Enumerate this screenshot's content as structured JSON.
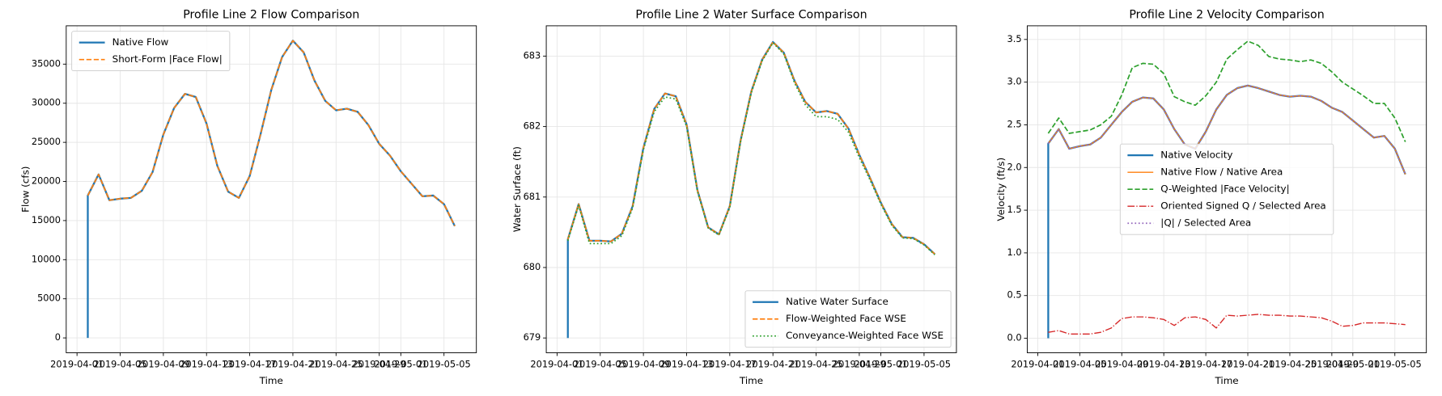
{
  "chart_data": [
    {
      "type": "line",
      "title": "Profile Line 2 Flow Comparison",
      "xlabel": "Time",
      "ylabel": "Flow (cfs)",
      "x": [
        "2019-04-02",
        "2019-04-02",
        "2019-04-03",
        "2019-04-04",
        "2019-04-05",
        "2019-04-06",
        "2019-04-07",
        "2019-04-08",
        "2019-04-09",
        "2019-04-10",
        "2019-04-11",
        "2019-04-12",
        "2019-04-13",
        "2019-04-14",
        "2019-04-15",
        "2019-04-16",
        "2019-04-17",
        "2019-04-18",
        "2019-04-19",
        "2019-04-20",
        "2019-04-21",
        "2019-04-22",
        "2019-04-23",
        "2019-04-24",
        "2019-04-25",
        "2019-04-26",
        "2019-04-27",
        "2019-04-28",
        "2019-04-29",
        "2019-04-30",
        "2019-05-01",
        "2019-05-02",
        "2019-05-03",
        "2019-05-04",
        "2019-05-05",
        "2019-05-06"
      ],
      "series": [
        {
          "name": "Native Flow",
          "color": "#1f77b4",
          "linestyle": "solid",
          "linewidth": 2,
          "values": [
            0,
            18200,
            20900,
            17600,
            17800,
            17900,
            18800,
            21200,
            26000,
            29400,
            31200,
            30800,
            27400,
            22000,
            18700,
            17900,
            20700,
            26000,
            31700,
            35900,
            38000,
            36500,
            32900,
            30300,
            29100,
            29300,
            28900,
            27200,
            24800,
            23300,
            21300,
            19700,
            18100,
            18200,
            17100,
            14300
          ]
        },
        {
          "name": "Short-Form |Face Flow|",
          "color": "#ff7f0e",
          "linestyle": "dashed",
          "linewidth": 1.5,
          "values": [
            null,
            18200,
            20900,
            17600,
            17800,
            17900,
            18800,
            21200,
            26000,
            29400,
            31200,
            30800,
            27400,
            22000,
            18700,
            17900,
            20700,
            26000,
            31700,
            35900,
            38000,
            36500,
            32900,
            30300,
            29100,
            29300,
            28900,
            27200,
            24800,
            23300,
            21300,
            19700,
            18100,
            18200,
            17100,
            14300
          ]
        }
      ],
      "xlim": [
        "2019-03-31",
        "2019-05-08"
      ],
      "xticks": [
        "2019-04-01",
        "2019-04-05",
        "2019-04-09",
        "2019-04-13",
        "2019-04-17",
        "2019-04-21",
        "2019-04-25",
        "2019-04-29",
        "2019-05-01",
        "2019-05-05"
      ],
      "ylim": [
        -1900,
        39900
      ],
      "yticks": [
        0,
        5000,
        10000,
        15000,
        20000,
        25000,
        30000,
        35000
      ],
      "grid": true,
      "legend": "upper left"
    },
    {
      "type": "line",
      "title": "Profile Line 2 Water Surface Comparison",
      "xlabel": "Time",
      "ylabel": "Water Surface (ft)",
      "x": [
        "2019-04-02",
        "2019-04-02",
        "2019-04-03",
        "2019-04-04",
        "2019-04-05",
        "2019-04-06",
        "2019-04-07",
        "2019-04-08",
        "2019-04-09",
        "2019-04-10",
        "2019-04-11",
        "2019-04-12",
        "2019-04-13",
        "2019-04-14",
        "2019-04-15",
        "2019-04-16",
        "2019-04-17",
        "2019-04-18",
        "2019-04-19",
        "2019-04-20",
        "2019-04-21",
        "2019-04-22",
        "2019-04-23",
        "2019-04-24",
        "2019-04-25",
        "2019-04-26",
        "2019-04-27",
        "2019-04-28",
        "2019-04-29",
        "2019-04-30",
        "2019-05-01",
        "2019-05-02",
        "2019-05-03",
        "2019-05-04",
        "2019-05-05",
        "2019-05-06"
      ],
      "series": [
        {
          "name": "Native Water Surface",
          "color": "#1f77b4",
          "linestyle": "solid",
          "linewidth": 2,
          "values": [
            679.0,
            680.4,
            680.9,
            680.38,
            680.38,
            680.37,
            680.48,
            680.87,
            681.7,
            682.25,
            682.47,
            682.43,
            682.03,
            681.1,
            680.57,
            680.47,
            680.87,
            681.8,
            682.5,
            682.95,
            683.2,
            683.05,
            682.65,
            682.35,
            682.2,
            682.22,
            682.18,
            681.97,
            681.6,
            681.27,
            680.92,
            680.62,
            680.43,
            680.42,
            680.33,
            680.19
          ]
        },
        {
          "name": "Flow-Weighted Face WSE",
          "color": "#ff7f0e",
          "linestyle": "dashed",
          "linewidth": 1.5,
          "values": [
            null,
            680.4,
            680.9,
            680.38,
            680.38,
            680.37,
            680.48,
            680.87,
            681.7,
            682.25,
            682.47,
            682.43,
            682.03,
            681.1,
            680.57,
            680.47,
            680.87,
            681.8,
            682.5,
            682.95,
            683.2,
            683.05,
            682.65,
            682.35,
            682.2,
            682.22,
            682.18,
            681.97,
            681.6,
            681.27,
            680.92,
            680.62,
            680.43,
            680.42,
            680.33,
            680.19
          ]
        },
        {
          "name": "Conveyance-Weighted Face WSE",
          "color": "#2ca02c",
          "linestyle": "dotted",
          "linewidth": 1.5,
          "values": [
            null,
            680.38,
            680.88,
            680.34,
            680.34,
            680.34,
            680.45,
            680.84,
            681.67,
            682.21,
            682.42,
            682.39,
            682.0,
            681.08,
            680.56,
            680.46,
            680.85,
            681.78,
            682.48,
            682.93,
            683.19,
            683.03,
            682.62,
            682.31,
            682.14,
            682.14,
            682.1,
            681.92,
            681.56,
            681.24,
            680.9,
            680.6,
            680.42,
            680.41,
            680.32,
            680.18
          ]
        }
      ],
      "xlim": [
        "2019-03-31",
        "2019-05-08"
      ],
      "xticks": [
        "2019-04-01",
        "2019-04-05",
        "2019-04-09",
        "2019-04-13",
        "2019-04-17",
        "2019-04-21",
        "2019-04-25",
        "2019-04-29",
        "2019-05-01",
        "2019-05-05"
      ],
      "ylim": [
        678.79,
        683.43
      ],
      "yticks": [
        679,
        680,
        681,
        682,
        683
      ],
      "grid": true,
      "legend": "lower right"
    },
    {
      "type": "line",
      "title": "Profile Line 2 Velocity Comparison",
      "xlabel": "Time",
      "ylabel": "Velocity (ft/s)",
      "x": [
        "2019-04-02",
        "2019-04-02",
        "2019-04-03",
        "2019-04-04",
        "2019-04-05",
        "2019-04-06",
        "2019-04-07",
        "2019-04-08",
        "2019-04-09",
        "2019-04-10",
        "2019-04-11",
        "2019-04-12",
        "2019-04-13",
        "2019-04-14",
        "2019-04-15",
        "2019-04-16",
        "2019-04-17",
        "2019-04-18",
        "2019-04-19",
        "2019-04-20",
        "2019-04-21",
        "2019-04-22",
        "2019-04-23",
        "2019-04-24",
        "2019-04-25",
        "2019-04-26",
        "2019-04-27",
        "2019-04-28",
        "2019-04-29",
        "2019-04-30",
        "2019-05-01",
        "2019-05-02",
        "2019-05-03",
        "2019-05-04",
        "2019-05-05",
        "2019-05-06"
      ],
      "series": [
        {
          "name": "Native Velocity",
          "color": "#1f77b4",
          "linestyle": "solid",
          "linewidth": 2,
          "values": [
            0,
            2.28,
            2.45,
            2.22,
            2.25,
            2.27,
            2.35,
            2.5,
            2.65,
            2.77,
            2.82,
            2.81,
            2.68,
            2.45,
            2.27,
            2.22,
            2.42,
            2.68,
            2.85,
            2.93,
            2.96,
            2.93,
            2.89,
            2.85,
            2.83,
            2.84,
            2.83,
            2.78,
            2.7,
            2.65,
            2.55,
            2.45,
            2.35,
            2.37,
            2.22,
            1.92
          ]
        },
        {
          "name": "Native Flow / Native Area",
          "color": "#ff7f0e",
          "linestyle": "solid",
          "linewidth": 1.2,
          "values": [
            null,
            2.28,
            2.45,
            2.22,
            2.25,
            2.27,
            2.35,
            2.5,
            2.65,
            2.77,
            2.82,
            2.81,
            2.68,
            2.45,
            2.27,
            2.22,
            2.42,
            2.68,
            2.85,
            2.93,
            2.96,
            2.93,
            2.89,
            2.85,
            2.83,
            2.84,
            2.83,
            2.78,
            2.7,
            2.65,
            2.55,
            2.45,
            2.35,
            2.37,
            2.22,
            1.92
          ]
        },
        {
          "name": "Q-Weighted |Face Velocity|",
          "color": "#2ca02c",
          "linestyle": "dashed",
          "linewidth": 1.5,
          "values": [
            null,
            2.4,
            2.58,
            2.4,
            2.42,
            2.44,
            2.5,
            2.6,
            2.85,
            3.17,
            3.22,
            3.21,
            3.1,
            2.83,
            2.77,
            2.73,
            2.84,
            3.0,
            3.27,
            3.38,
            3.48,
            3.43,
            3.3,
            3.27,
            3.26,
            3.24,
            3.26,
            3.22,
            3.12,
            3.0,
            2.92,
            2.84,
            2.75,
            2.75,
            2.58,
            2.3
          ]
        },
        {
          "name": "Oriented Signed Q / Selected Area",
          "color": "#d62728",
          "linestyle": "dashdot",
          "linewidth": 1.2,
          "values": [
            null,
            0.07,
            0.09,
            0.05,
            0.05,
            0.05,
            0.07,
            0.12,
            0.23,
            0.25,
            0.25,
            0.24,
            0.22,
            0.15,
            0.24,
            0.25,
            0.22,
            0.12,
            0.27,
            0.26,
            0.27,
            0.28,
            0.27,
            0.27,
            0.26,
            0.26,
            0.25,
            0.24,
            0.2,
            0.14,
            0.15,
            0.18,
            0.18,
            0.18,
            0.17,
            0.16
          ]
        },
        {
          "name": "|Q| / Selected Area",
          "color": "#9467bd",
          "linestyle": "dotted",
          "linewidth": 1.5,
          "values": [
            null,
            2.28,
            2.45,
            2.22,
            2.25,
            2.27,
            2.35,
            2.5,
            2.65,
            2.77,
            2.82,
            2.81,
            2.68,
            2.45,
            2.27,
            2.22,
            2.42,
            2.68,
            2.85,
            2.93,
            2.96,
            2.93,
            2.89,
            2.85,
            2.83,
            2.84,
            2.83,
            2.78,
            2.7,
            2.65,
            2.55,
            2.45,
            2.35,
            2.37,
            2.22,
            1.92
          ]
        }
      ],
      "xlim": [
        "2019-03-31",
        "2019-05-08"
      ],
      "xticks": [
        "2019-04-01",
        "2019-04-05",
        "2019-04-09",
        "2019-04-13",
        "2019-04-17",
        "2019-04-21",
        "2019-04-25",
        "2019-04-29",
        "2019-05-01",
        "2019-05-05"
      ],
      "ylim": [
        -0.17,
        3.66
      ],
      "yticks": [
        {
          "value": 0,
          "label": "0.0"
        },
        0.5,
        {
          "value": 1,
          "label": "1.0"
        },
        1.5,
        {
          "value": 2,
          "label": "2.0"
        },
        2.5,
        {
          "value": 3,
          "label": "3.0"
        },
        3.5
      ],
      "grid": true,
      "legend": "center"
    }
  ]
}
